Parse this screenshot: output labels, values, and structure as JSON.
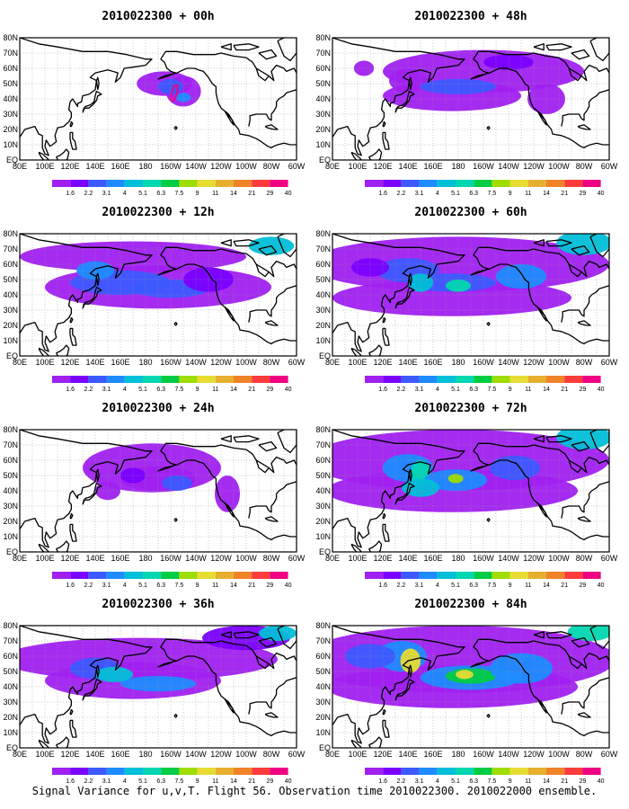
{
  "caption": "Signal Variance for u,v,T. Flight 56. Observation time 2010022300. 2010022000 ensemble.",
  "lon_labels": [
    "80E",
    "100E",
    "120E",
    "140E",
    "160E",
    "180",
    "160W",
    "140W",
    "120W",
    "100W",
    "80W",
    "60W"
  ],
  "lat_labels": [
    "80N",
    "70N",
    "60N",
    "50N",
    "40N",
    "30N",
    "20N",
    "10N",
    "EQ"
  ],
  "colorbar": {
    "labels": [
      "1.6",
      "2.2",
      "3.1",
      "4",
      "5.1",
      "6.3",
      "7.5",
      "9",
      "11",
      "14",
      "21",
      "29",
      "40"
    ],
    "colors": [
      "#a020f0",
      "#7a00ff",
      "#3c5aff",
      "#1e8cff",
      "#00bfd8",
      "#00d7b0",
      "#00cc44",
      "#9fdc00",
      "#e6dc32",
      "#e6af2d",
      "#f08228",
      "#fa3c3c",
      "#f00082"
    ]
  },
  "panels": [
    {
      "title": "2010022300 + 00h",
      "level": 0
    },
    {
      "title": "2010022300 + 48h",
      "level": 4
    },
    {
      "title": "2010022300 + 12h",
      "level": 1
    },
    {
      "title": "2010022300 + 60h",
      "level": 5
    },
    {
      "title": "2010022300 + 24h",
      "level": 2
    },
    {
      "title": "2010022300 + 72h",
      "level": 6
    },
    {
      "title": "2010022300 + 36h",
      "level": 3
    },
    {
      "title": "2010022300 + 84h",
      "level": 7
    }
  ]
}
